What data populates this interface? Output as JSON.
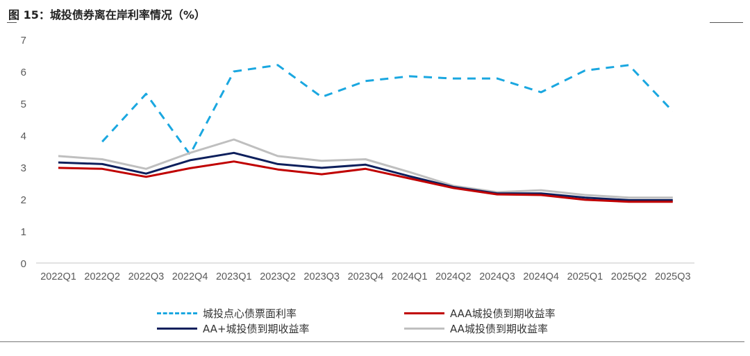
{
  "figure_title": "图 15：城投债券离在岸利率情况（%）",
  "chart_data": {
    "type": "line",
    "title": "城投债券离在岸利率情况（%）",
    "xlabel": "",
    "ylabel": "",
    "ylim": [
      0,
      7
    ],
    "yticks": [
      0,
      1,
      2,
      3,
      4,
      5,
      6,
      7
    ],
    "grid": false,
    "legend_position": "bottom",
    "categories": [
      "2022Q1",
      "2022Q2",
      "2022Q3",
      "2022Q4",
      "2023Q1",
      "2023Q2",
      "2023Q3",
      "2023Q4",
      "2024Q1",
      "2024Q2",
      "2024Q3",
      "2024Q4",
      "2025Q1",
      "2025Q2",
      "2025Q3"
    ],
    "series": [
      {
        "name": "城投点心债票面利率",
        "color": "#1AA7E0",
        "dash": true,
        "values": [
          null,
          3.8,
          5.3,
          3.4,
          6.0,
          6.2,
          5.2,
          5.7,
          5.85,
          5.78,
          5.78,
          5.35,
          6.03,
          6.2,
          4.75
        ]
      },
      {
        "name": "AAA城投债到期收益率",
        "color": "#C00000",
        "dash": false,
        "values": [
          2.98,
          2.95,
          2.7,
          2.97,
          3.18,
          2.93,
          2.78,
          2.95,
          2.65,
          2.35,
          2.15,
          2.13,
          1.98,
          1.92,
          1.92
        ]
      },
      {
        "name": "AA+城投债到期收益率",
        "color": "#0D1F5C",
        "dash": false,
        "values": [
          3.15,
          3.1,
          2.8,
          3.22,
          3.45,
          3.1,
          2.98,
          3.08,
          2.72,
          2.38,
          2.18,
          2.18,
          2.05,
          1.97,
          1.97
        ]
      },
      {
        "name": "AA城投债到期收益率",
        "color": "#BFBFBF",
        "dash": false,
        "values": [
          3.35,
          3.25,
          2.95,
          3.45,
          3.87,
          3.35,
          3.2,
          3.25,
          2.85,
          2.42,
          2.22,
          2.28,
          2.13,
          2.05,
          2.05
        ]
      }
    ]
  }
}
